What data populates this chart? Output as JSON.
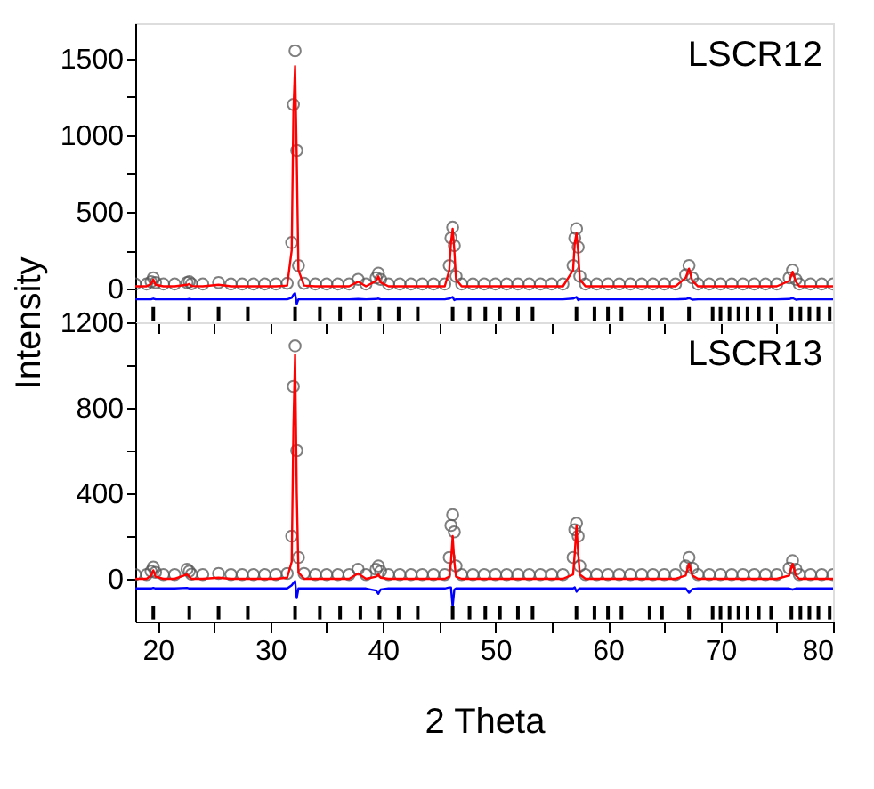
{
  "chart_data": [
    {
      "type": "scatter",
      "title": "LSCR12",
      "ylabel": "Intensity",
      "tick_labels": "y",
      "grid": false,
      "legend": false,
      "xlim": [
        18,
        80
      ],
      "ylim": [
        -220,
        1730
      ],
      "xticks": [
        20,
        {
          "value": 25,
          "label": null
        },
        30,
        {
          "value": 35,
          "label": null
        },
        40,
        {
          "value": 45,
          "label": null
        },
        50,
        {
          "value": 55,
          "label": null
        },
        60,
        {
          "value": 65,
          "label": null
        },
        70,
        {
          "value": 75,
          "label": null
        },
        80
      ],
      "yticks": [
        0,
        {
          "value": 250,
          "label": null
        },
        500,
        {
          "value": 750,
          "label": null
        },
        1000,
        {
          "value": 1250,
          "label": null
        },
        1500
      ],
      "x": [
        18,
        19,
        19.4,
        19.6,
        19.8,
        20.5,
        21.5,
        22.6,
        22.8,
        23.0,
        24,
        25.4,
        26.5,
        27.5,
        28.5,
        29.5,
        30.5,
        31.5,
        31.9,
        32.05,
        32.2,
        32.35,
        32.5,
        33,
        34,
        35,
        36,
        37,
        37.8,
        38.5,
        39.4,
        39.6,
        39.8,
        40.5,
        41.5,
        42.5,
        43.5,
        44.5,
        45.5,
        45.9,
        46.05,
        46.2,
        46.35,
        46.5,
        47,
        48,
        49,
        50,
        51,
        52,
        53,
        54,
        55,
        56,
        56.9,
        57.05,
        57.2,
        57.35,
        57.5,
        58,
        59,
        60,
        61,
        62,
        63,
        64,
        65,
        66,
        66.9,
        67.2,
        67.5,
        68,
        69,
        70,
        71,
        72,
        73,
        74,
        75,
        76.1,
        76.4,
        76.7,
        77,
        78,
        79,
        80
      ],
      "series": [
        {
          "type": "scatter",
          "marker": "circle",
          "color": "#555555",
          "values": [
            30,
            30,
            45,
            70,
            40,
            30,
            30,
            40,
            45,
            32,
            30,
            40,
            30,
            30,
            30,
            30,
            30,
            35,
            300,
            1200,
            1550,
            900,
            150,
            35,
            30,
            30,
            30,
            30,
            60,
            30,
            70,
            100,
            60,
            30,
            30,
            30,
            30,
            30,
            30,
            150,
            330,
            400,
            280,
            80,
            30,
            30,
            30,
            30,
            30,
            30,
            30,
            30,
            30,
            30,
            150,
            330,
            390,
            270,
            80,
            30,
            30,
            30,
            30,
            30,
            30,
            30,
            30,
            30,
            90,
            150,
            70,
            30,
            30,
            30,
            30,
            30,
            30,
            30,
            30,
            70,
            120,
            60,
            30,
            30,
            30,
            30
          ]
        },
        {
          "type": "line",
          "line_style": "solid",
          "color": "#ff0000",
          "values": [
            15,
            15,
            30,
            60,
            25,
            15,
            15,
            25,
            30,
            17,
            15,
            25,
            15,
            15,
            15,
            15,
            15,
            20,
            250,
            1150,
            1450,
            850,
            120,
            20,
            15,
            15,
            15,
            15,
            45,
            15,
            50,
            80,
            40,
            15,
            15,
            15,
            15,
            15,
            15,
            120,
            300,
            390,
            250,
            60,
            15,
            15,
            15,
            15,
            15,
            15,
            15,
            15,
            15,
            15,
            120,
            300,
            360,
            240,
            60,
            15,
            15,
            15,
            15,
            15,
            15,
            15,
            15,
            15,
            70,
            130,
            50,
            15,
            15,
            15,
            15,
            15,
            15,
            15,
            15,
            50,
            110,
            45,
            15,
            15,
            15,
            15
          ]
        },
        {
          "type": "line",
          "line_style": "solid",
          "color": "#0000ff",
          "values": [
            -70,
            -70,
            -70,
            -65,
            -70,
            -70,
            -70,
            -70,
            -68,
            -70,
            -70,
            -70,
            -70,
            -70,
            -70,
            -70,
            -70,
            -70,
            -60,
            -40,
            -30,
            -100,
            -70,
            -70,
            -70,
            -70,
            -70,
            -70,
            -68,
            -70,
            -68,
            -65,
            -70,
            -70,
            -70,
            -70,
            -70,
            -70,
            -70,
            -65,
            -60,
            -55,
            -75,
            -70,
            -70,
            -70,
            -70,
            -70,
            -70,
            -70,
            -70,
            -70,
            -70,
            -70,
            -65,
            -60,
            -55,
            -75,
            -70,
            -70,
            -70,
            -70,
            -70,
            -70,
            -70,
            -70,
            -70,
            -70,
            -68,
            -62,
            -72,
            -70,
            -70,
            -70,
            -70,
            -70,
            -70,
            -70,
            -70,
            -68,
            -62,
            -72,
            -70,
            -70,
            -70,
            -70
          ]
        },
        {
          "type": "bar",
          "color": "#000000",
          "x": [
            19.6,
            22.8,
            25.4,
            28.0,
            32.2,
            34.4,
            36.2,
            38.0,
            39.7,
            41.4,
            43.1,
            46.2,
            47.7,
            49.1,
            50.4,
            52.0,
            53.3,
            57.2,
            58.8,
            60.0,
            61.2,
            63.7,
            64.8,
            67.2,
            69.3,
            70.0,
            70.8,
            71.6,
            72.4,
            73.4,
            74.5,
            76.3,
            77.1,
            77.9,
            78.7,
            79.7
          ],
          "base": [
            -210,
            -210,
            -210,
            -210,
            -210,
            -210,
            -210,
            -210,
            -210,
            -210,
            -210,
            -210,
            -210,
            -210,
            -210,
            -210,
            -210,
            -210,
            -210,
            -210,
            -210,
            -210,
            -210,
            -210,
            -210,
            -210,
            -210,
            -210,
            -210,
            -210,
            -210,
            -210,
            -210,
            -210,
            -210,
            -210
          ],
          "values": [
            90,
            90,
            90,
            90,
            90,
            90,
            90,
            90,
            90,
            90,
            90,
            90,
            90,
            90,
            90,
            90,
            90,
            90,
            90,
            90,
            90,
            90,
            90,
            90,
            90,
            90,
            90,
            90,
            90,
            90,
            90,
            90,
            90,
            90,
            90,
            90
          ]
        }
      ]
    },
    {
      "type": "scatter",
      "title": "LSCR13",
      "xlabel": "2 Theta",
      "grid": false,
      "legend": false,
      "xlim": [
        18,
        80
      ],
      "ylim": [
        -200,
        1200
      ],
      "xticks": [
        20,
        {
          "value": 25,
          "label": null
        },
        30,
        {
          "value": 35,
          "label": null
        },
        40,
        {
          "value": 45,
          "label": null
        },
        50,
        {
          "value": 55,
          "label": null
        },
        60,
        {
          "value": 65,
          "label": null
        },
        70,
        {
          "value": 75,
          "label": null
        },
        80
      ],
      "yticks": [
        0,
        {
          "value": 200,
          "label": null
        },
        400,
        {
          "value": 600,
          "label": null
        },
        800,
        {
          "value": 1000,
          "label": null
        },
        1200
      ],
      "x": [
        18,
        19,
        19.4,
        19.6,
        19.8,
        20.5,
        21.5,
        22.6,
        22.8,
        23.0,
        24,
        25.4,
        26.5,
        27.5,
        28.5,
        29.5,
        30.5,
        31.5,
        31.9,
        32.05,
        32.2,
        32.35,
        32.5,
        33,
        34,
        35,
        36,
        37,
        37.8,
        38.5,
        39.4,
        39.6,
        39.8,
        40.5,
        41.5,
        42.5,
        43.5,
        44.5,
        45.5,
        45.9,
        46.05,
        46.2,
        46.35,
        46.5,
        47,
        48,
        49,
        50,
        51,
        52,
        53,
        54,
        55,
        56,
        56.9,
        57.05,
        57.2,
        57.35,
        57.5,
        58,
        59,
        60,
        61,
        62,
        63,
        64,
        65,
        66,
        66.9,
        67.2,
        67.5,
        68,
        69,
        70,
        71,
        72,
        73,
        74,
        75,
        76.1,
        76.4,
        76.7,
        77,
        78,
        79,
        80
      ],
      "series": [
        {
          "type": "scatter",
          "marker": "circle",
          "color": "#555555",
          "values": [
            20,
            20,
            35,
            55,
            30,
            20,
            20,
            45,
            35,
            22,
            20,
            25,
            20,
            20,
            20,
            20,
            20,
            25,
            200,
            900,
            1090,
            600,
            100,
            25,
            20,
            20,
            20,
            20,
            45,
            20,
            45,
            60,
            35,
            20,
            20,
            20,
            20,
            20,
            20,
            100,
            250,
            300,
            220,
            60,
            20,
            20,
            20,
            20,
            20,
            20,
            20,
            20,
            20,
            20,
            100,
            230,
            260,
            200,
            60,
            20,
            20,
            20,
            20,
            20,
            20,
            20,
            20,
            20,
            60,
            100,
            50,
            20,
            20,
            20,
            20,
            20,
            20,
            20,
            20,
            50,
            85,
            45,
            20,
            20,
            20,
            20
          ]
        },
        {
          "type": "line",
          "line_style": "solid",
          "color": "#ff0000",
          "values": [
            0,
            0,
            15,
            40,
            10,
            0,
            0,
            20,
            10,
            0,
            0,
            5,
            0,
            0,
            0,
            0,
            0,
            5,
            80,
            700,
            1050,
            400,
            30,
            0,
            0,
            0,
            0,
            0,
            25,
            0,
            10,
            20,
            5,
            0,
            0,
            0,
            0,
            0,
            0,
            10,
            80,
            200,
            80,
            10,
            0,
            0,
            0,
            0,
            0,
            0,
            0,
            0,
            0,
            0,
            20,
            120,
            250,
            120,
            20,
            0,
            0,
            0,
            0,
            0,
            0,
            0,
            0,
            0,
            15,
            70,
            15,
            0,
            0,
            0,
            0,
            0,
            0,
            0,
            0,
            15,
            70,
            15,
            0,
            0,
            0,
            0
          ]
        },
        {
          "type": "line",
          "line_style": "solid",
          "color": "#0000ff",
          "values": [
            -45,
            -45,
            -45,
            -42,
            -45,
            -45,
            -45,
            -42,
            -45,
            -45,
            -45,
            -45,
            -45,
            -45,
            -45,
            -45,
            -45,
            -45,
            -30,
            -20,
            -10,
            -90,
            -45,
            -45,
            -45,
            -45,
            -45,
            -45,
            -45,
            -45,
            -55,
            -70,
            -50,
            -45,
            -45,
            -45,
            -45,
            -45,
            -45,
            -40,
            -40,
            -130,
            -50,
            -45,
            -45,
            -45,
            -45,
            -45,
            -45,
            -45,
            -45,
            -45,
            -45,
            -45,
            -45,
            -40,
            -60,
            -50,
            -45,
            -45,
            -45,
            -45,
            -45,
            -45,
            -45,
            -45,
            -45,
            -45,
            -45,
            -65,
            -48,
            -45,
            -45,
            -45,
            -45,
            -45,
            -45,
            -45,
            -45,
            -45,
            -50,
            -45,
            -45,
            -45,
            -45,
            -45
          ]
        },
        {
          "type": "bar",
          "color": "#000000",
          "x": [
            19.6,
            22.8,
            25.4,
            28.0,
            32.2,
            34.4,
            36.2,
            38.0,
            39.7,
            41.4,
            43.1,
            46.2,
            47.7,
            49.1,
            50.4,
            52.0,
            53.3,
            57.2,
            58.8,
            60.0,
            61.2,
            63.7,
            64.8,
            67.2,
            69.3,
            70.0,
            70.8,
            71.6,
            72.4,
            73.4,
            74.5,
            76.3,
            77.1,
            77.9,
            78.7,
            79.7
          ],
          "base": [
            -190,
            -190,
            -190,
            -190,
            -190,
            -190,
            -190,
            -190,
            -190,
            -190,
            -190,
            -190,
            -190,
            -190,
            -190,
            -190,
            -190,
            -190,
            -190,
            -190,
            -190,
            -190,
            -190,
            -190,
            -190,
            -190,
            -190,
            -190,
            -190,
            -190,
            -190,
            -190,
            -190,
            -190,
            -190,
            -190
          ],
          "values": [
            65,
            65,
            65,
            65,
            65,
            65,
            65,
            65,
            65,
            65,
            65,
            65,
            65,
            65,
            65,
            65,
            65,
            65,
            65,
            65,
            65,
            65,
            65,
            65,
            65,
            65,
            65,
            65,
            65,
            65,
            65,
            65,
            65,
            65,
            65,
            65
          ]
        }
      ]
    }
  ]
}
